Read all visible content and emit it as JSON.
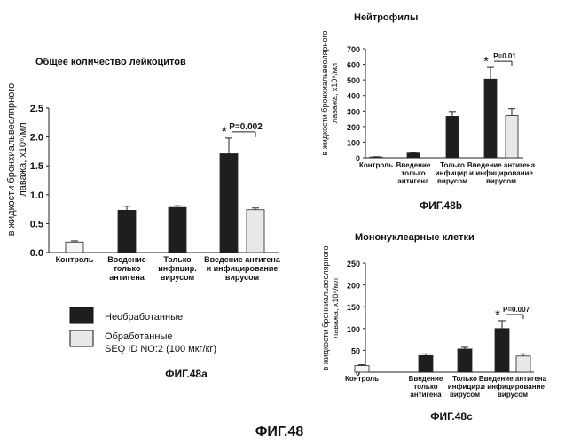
{
  "figure_caption": "ФИГ.48",
  "chart_data": [
    {
      "id": "a",
      "type": "bar",
      "title": "Общее количество лейкоцитов",
      "caption": "ФИГ.48a",
      "ylabel_line1": "в жидкости бронхиальвеолярного",
      "ylabel_line2": "лаважа, x10⁶/мл",
      "ylim": [
        0,
        2.5
      ],
      "yticks": [
        "0.0",
        "0.5",
        "1.0",
        "1.5",
        "2.0",
        "2.5"
      ],
      "categories": [
        [
          "Контроль"
        ],
        [
          "Введение",
          "только",
          "антигена"
        ],
        [
          "Только",
          "инфицир.",
          "вирусом"
        ],
        [
          "Введение антигена",
          "и инфицирование",
          "вирусом"
        ]
      ],
      "series": [
        {
          "name": "Необработанные",
          "color": "#1e1e1e",
          "values": [
            0.18,
            0.73,
            0.78,
            1.71
          ],
          "errors": [
            0.02,
            0.07,
            0.03,
            0.27
          ]
        },
        {
          "name": "Обработанные SEQ ID NO:2 (100 мкг/кг)",
          "color": "#e8e8e8",
          "values": [
            null,
            null,
            null,
            0.74
          ],
          "errors": [
            null,
            null,
            null,
            0.03
          ]
        }
      ],
      "significance": {
        "star": "*",
        "label": "P=0.002"
      }
    },
    {
      "id": "b",
      "type": "bar",
      "title": "Нейтрофилы",
      "caption": "ФИГ.48b",
      "ylabel_line1": "в жидкости бронхиальвеолярного",
      "ylabel_line2": "лаважа, x10⁶/мл",
      "ylim": [
        0,
        700
      ],
      "yticks": [
        "0",
        "100",
        "200",
        "300",
        "400",
        "500",
        "600",
        "700"
      ],
      "categories": [
        [
          "Контроль"
        ],
        [
          "Введение",
          "только",
          "антигена"
        ],
        [
          "Только",
          "инфицир.",
          "вирусом"
        ],
        [
          "Введение антигена",
          "и инфицирование",
          "вирусом"
        ]
      ],
      "series": [
        {
          "name": "Необработанные",
          "color": "#1e1e1e",
          "values": [
            5,
            30,
            265,
            505
          ],
          "errors": [
            2,
            5,
            32,
            75
          ]
        },
        {
          "name": "Обработанные SEQ ID NO:2 (100 мкг/кг)",
          "color": "#e8e8e8",
          "values": [
            null,
            null,
            null,
            270
          ],
          "errors": [
            null,
            null,
            null,
            45
          ]
        }
      ],
      "significance": {
        "star": "*",
        "label": "P=0.01"
      }
    },
    {
      "id": "c",
      "type": "bar",
      "title": "Мононуклеарные клетки",
      "caption": "ФИГ.48c",
      "ylabel_line1": "в жидкости бронхиальвеолярного",
      "ylabel_line2": "лаважа, x10⁶/мл",
      "ylim": [
        0,
        250
      ],
      "yticks": [
        "0",
        "50",
        "100",
        "150",
        "200",
        "250"
      ],
      "categories": [
        [
          "Контроль"
        ],
        [
          "Введение",
          "только",
          "антигена"
        ],
        [
          "Только",
          "инфицир.",
          "вирусом"
        ],
        [
          "Введение антигена",
          "и инфицирование",
          "вирусом"
        ]
      ],
      "series": [
        {
          "name": "Необработанные",
          "color": "#1e1e1e",
          "values": [
            15,
            38,
            53,
            100
          ],
          "errors": [
            2,
            4,
            4,
            18
          ]
        },
        {
          "name": "Обработанные SEQ ID NO:2 (100 мкг/кг)",
          "color": "#e8e8e8",
          "values": [
            null,
            null,
            null,
            37
          ],
          "errors": [
            null,
            null,
            null,
            5
          ]
        }
      ],
      "significance": {
        "star": "*",
        "label": "P=0.007"
      }
    }
  ],
  "legend": {
    "items": [
      {
        "label_line1": "Необработанные",
        "label_line2": "",
        "color": "#1e1e1e"
      },
      {
        "label_line1": "Обработанные",
        "label_line2": "SEQ ID NO:2 (100 мкг/кг)",
        "color": "#e8e8e8"
      }
    ]
  }
}
